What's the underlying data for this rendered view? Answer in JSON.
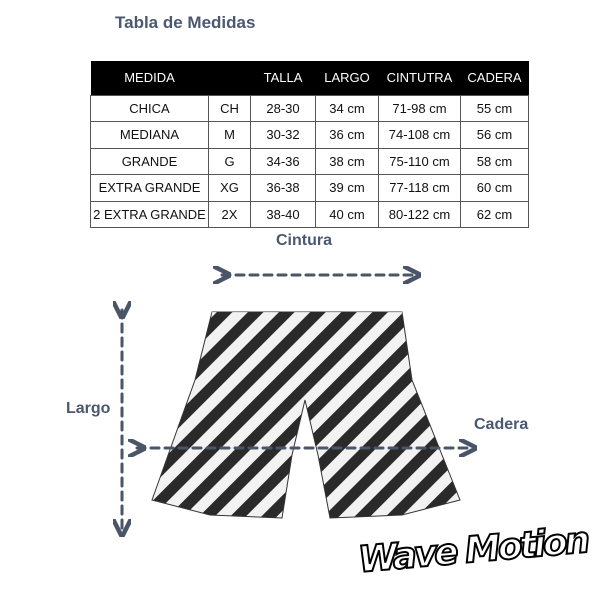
{
  "title": "Tabla de Medidas",
  "table": {
    "headers": [
      "MEDIDA",
      "",
      "TALLA",
      "LARGO",
      "CINTUTRA",
      "CADERA"
    ],
    "rows": [
      [
        "CHICA",
        "CH",
        "28-30",
        "34 cm",
        "71-98 cm",
        "55 cm"
      ],
      [
        "MEDIANA",
        "M",
        "30-32",
        "36 cm",
        "74-108 cm",
        "56 cm"
      ],
      [
        "GRANDE",
        "G",
        "34-36",
        "38 cm",
        "75-110 cm",
        "58 cm"
      ],
      [
        "EXTRA GRANDE",
        "XG",
        "36-38",
        "39 cm",
        "77-118 cm",
        "60 cm"
      ],
      [
        "2 EXTRA GRANDE",
        "2X",
        "38-40",
        "40 cm",
        "80-122 cm",
        "62 cm"
      ]
    ]
  },
  "labels": {
    "cintura": "Cintura",
    "largo": "Largo",
    "cadera": "Cadera"
  },
  "logo": "WaveMotion",
  "colors": {
    "label": "#4a5870",
    "arrow": "#4a5568"
  }
}
